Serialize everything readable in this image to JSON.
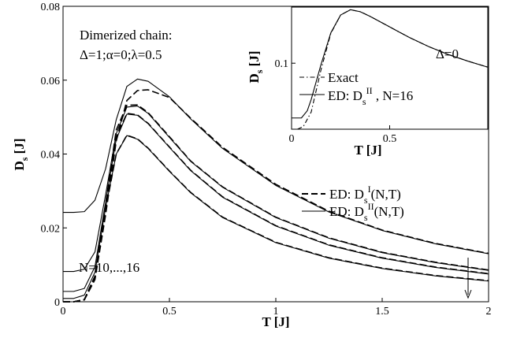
{
  "chart_data": [
    {
      "type": "line",
      "xlabel": "T [J]",
      "ylabel": "D_s [J]",
      "xlim": [
        0,
        2
      ],
      "ylim": [
        0,
        0.08
      ],
      "x_ticks": [
        0,
        0.5,
        1,
        1.5,
        2
      ],
      "x_tick_labels": [
        "0",
        "0.5",
        "1",
        "1.5",
        "2"
      ],
      "y_ticks": [
        0,
        0.02,
        0.04,
        0.06,
        0.08
      ],
      "y_tick_labels": [
        "0",
        "0.02",
        "0.04",
        "0.06",
        "0.08"
      ],
      "annotation_title": "Dimerized chain:",
      "annotation_params": "Δ=1;α=0;λ=0.5",
      "annotation_n": "N=10,...,16",
      "legend": [
        {
          "label": "ED: D_s^I(N,T)",
          "style": "dashed"
        },
        {
          "label": "ED: D_s^II(N,T)",
          "style": "solid"
        }
      ],
      "series": [
        {
          "style": "solid",
          "x": [
            0,
            0.05,
            0.1,
            0.15,
            0.2,
            0.25,
            0.3,
            0.35,
            0.4,
            0.5,
            0.6,
            0.75,
            1,
            1.25,
            1.5,
            1.75,
            2
          ],
          "y": [
            0.0242,
            0.0242,
            0.0244,
            0.0275,
            0.036,
            0.0493,
            0.0583,
            0.0603,
            0.0597,
            0.0555,
            0.0495,
            0.0415,
            0.0315,
            0.0243,
            0.0193,
            0.0157,
            0.013
          ]
        },
        {
          "style": "dashed",
          "x": [
            0,
            0.05,
            0.1,
            0.15,
            0.2,
            0.25,
            0.3,
            0.35,
            0.4,
            0.5,
            0.6,
            0.75,
            1,
            1.25,
            1.5,
            1.75,
            2
          ],
          "y": [
            0,
            0,
            0.0005,
            0.006,
            0.0235,
            0.0435,
            0.0545,
            0.0572,
            0.0574,
            0.0553,
            0.0497,
            0.0418,
            0.0318,
            0.0245,
            0.0194,
            0.0158,
            0.0131
          ]
        },
        {
          "style": "solid",
          "x": [
            0,
            0.05,
            0.1,
            0.15,
            0.2,
            0.25,
            0.3,
            0.35,
            0.4,
            0.5,
            0.6,
            0.75,
            1,
            1.25,
            1.5,
            1.75,
            2
          ],
          "y": [
            0.0082,
            0.0082,
            0.0088,
            0.0135,
            0.029,
            0.0455,
            0.0527,
            0.053,
            0.051,
            0.0445,
            0.038,
            0.031,
            0.0228,
            0.0172,
            0.0133,
            0.0106,
            0.0085
          ]
        },
        {
          "style": "dashed",
          "x": [
            0,
            0.05,
            0.1,
            0.15,
            0.2,
            0.25,
            0.3,
            0.35,
            0.4,
            0.5,
            0.6,
            0.75,
            1,
            1.25,
            1.5,
            1.75,
            2
          ],
          "y": [
            0,
            0,
            0.0006,
            0.007,
            0.0265,
            0.0465,
            0.0532,
            0.0533,
            0.0512,
            0.0447,
            0.0381,
            0.0311,
            0.0229,
            0.0173,
            0.0134,
            0.0107,
            0.0086
          ]
        },
        {
          "style": "solid",
          "x": [
            0,
            0.05,
            0.1,
            0.15,
            0.2,
            0.25,
            0.3,
            0.35,
            0.4,
            0.5,
            0.6,
            0.75,
            1,
            1.25,
            1.5,
            1.75,
            2
          ],
          "y": [
            0.0028,
            0.0028,
            0.0036,
            0.0095,
            0.027,
            0.044,
            0.0508,
            0.0505,
            0.0482,
            0.0418,
            0.0355,
            0.0283,
            0.0205,
            0.0153,
            0.0118,
            0.0093,
            0.0075
          ]
        },
        {
          "style": "dashed",
          "x": [
            0,
            0.05,
            0.1,
            0.15,
            0.2,
            0.25,
            0.3,
            0.35,
            0.4,
            0.5,
            0.6,
            0.75,
            1,
            1.25,
            1.5,
            1.75,
            2
          ],
          "y": [
            0,
            0,
            0.0005,
            0.0065,
            0.0255,
            0.0445,
            0.051,
            0.0506,
            0.0483,
            0.0419,
            0.0356,
            0.0284,
            0.0206,
            0.0154,
            0.0119,
            0.0094,
            0.0076
          ]
        },
        {
          "style": "solid",
          "x": [
            0,
            0.05,
            0.1,
            0.15,
            0.2,
            0.25,
            0.3,
            0.35,
            0.4,
            0.5,
            0.6,
            0.75,
            1,
            1.25,
            1.5,
            1.75,
            2
          ],
          "y": [
            0.0009,
            0.0009,
            0.0018,
            0.008,
            0.0255,
            0.04,
            0.045,
            0.044,
            0.0415,
            0.0353,
            0.0295,
            0.0228,
            0.016,
            0.0118,
            0.009,
            0.007,
            0.0056
          ]
        },
        {
          "style": "dashed",
          "x": [
            0,
            0.05,
            0.1,
            0.15,
            0.2,
            0.25,
            0.3,
            0.35,
            0.4,
            0.5,
            0.6,
            0.75,
            1,
            1.25,
            1.5,
            1.75,
            2
          ],
          "y": [
            0,
            0,
            0.0006,
            0.0068,
            0.025,
            0.04,
            0.0451,
            0.0441,
            0.0416,
            0.0354,
            0.0296,
            0.0229,
            0.0161,
            0.0119,
            0.0091,
            0.0071,
            0.0057
          ]
        }
      ]
    },
    {
      "type": "line",
      "xlabel": "T [J]",
      "ylabel": "D_s [J]",
      "xlim": [
        0,
        1
      ],
      "ylim": [
        0,
        0.185
      ],
      "x_ticks": [
        0,
        0.5
      ],
      "x_tick_labels": [
        "0",
        "0.5"
      ],
      "y_ticks": [
        0.1
      ],
      "y_tick_labels": [
        "0.1"
      ],
      "annotation": "Δ=0",
      "legend": [
        {
          "label": "Exact",
          "style": "dashdot"
        },
        {
          "label": "ED: D_s^II , N=16",
          "style": "solid"
        }
      ],
      "series": [
        {
          "style": "dashdot",
          "x": [
            0.03,
            0.06,
            0.1,
            0.15,
            0.2,
            0.25,
            0.3,
            0.35,
            0.4,
            0.5,
            0.6,
            0.7,
            0.8,
            0.9,
            1.0
          ],
          "y": [
            0,
            0.004,
            0.026,
            0.09,
            0.145,
            0.173,
            0.181,
            0.178,
            0.171,
            0.155,
            0.139,
            0.125,
            0.113,
            0.103,
            0.094
          ]
        },
        {
          "style": "solid",
          "x": [
            0,
            0.05,
            0.08,
            0.1,
            0.15,
            0.2,
            0.25,
            0.3,
            0.35,
            0.4,
            0.5,
            0.6,
            0.7,
            0.8,
            0.9,
            1.0
          ],
          "y": [
            0.017,
            0.017,
            0.028,
            0.045,
            0.098,
            0.146,
            0.173,
            0.181,
            0.178,
            0.171,
            0.155,
            0.139,
            0.125,
            0.113,
            0.103,
            0.094
          ]
        }
      ]
    }
  ]
}
